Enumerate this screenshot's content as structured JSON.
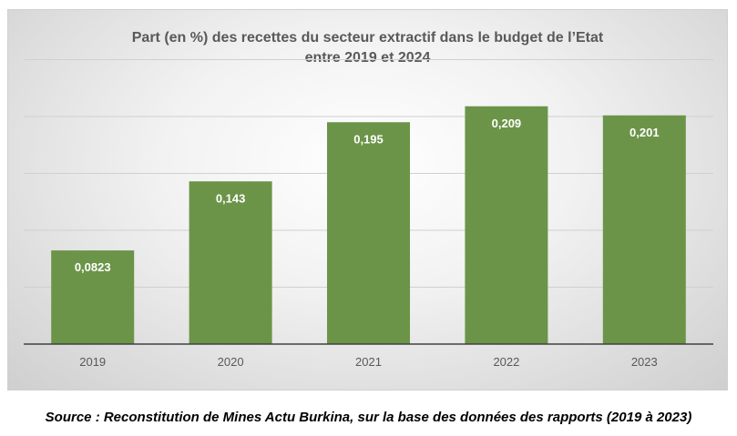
{
  "chart_data": {
    "type": "bar",
    "title_line1": "Part (en %) des recettes du secteur extractif dans le budget de l’Etat",
    "title_line2": "entre 2019 et 2024",
    "categories": [
      "2019",
      "2020",
      "2021",
      "2022",
      "2023"
    ],
    "values": [
      0.0823,
      0.143,
      0.195,
      0.209,
      0.201
    ],
    "data_labels": [
      "0,0823",
      "0,143",
      "0,195",
      "0,209",
      "0,201"
    ],
    "xlabel": "",
    "ylabel": "",
    "ylim": [
      0,
      0.25
    ],
    "gridlines": [
      0.05,
      0.1,
      0.15,
      0.2,
      0.25
    ],
    "grid": true,
    "bar_color": "#6b9448"
  },
  "source": "Source : Reconstitution de Mines Actu Burkina, sur la base des données des rapports (2019 à 2023)"
}
